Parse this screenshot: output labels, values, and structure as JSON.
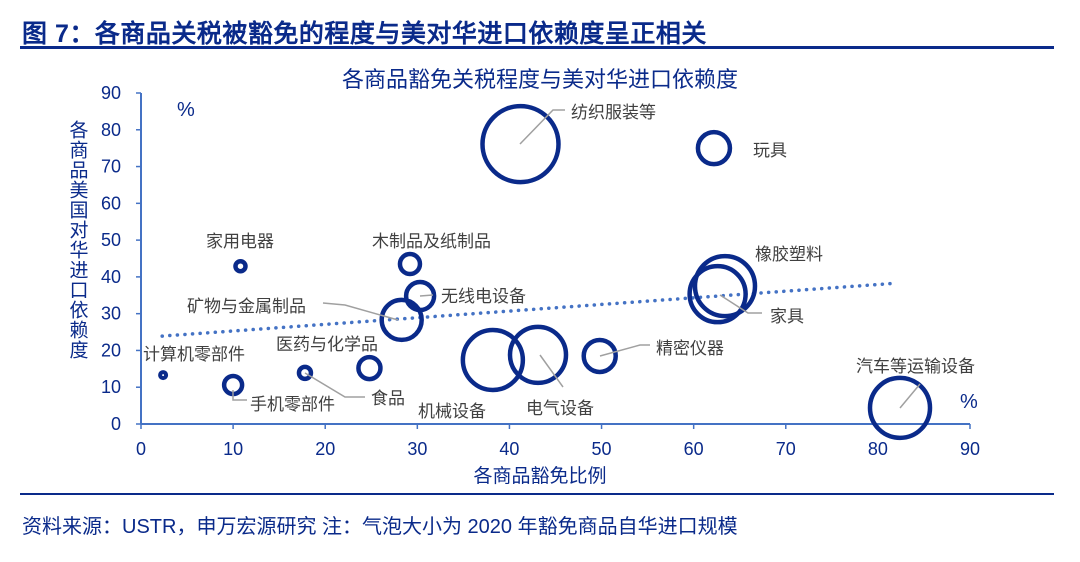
{
  "figure_title": "图 7：各商品关税被豁免的程度与美对华进口依赖度呈正相关",
  "source_note": "资料来源：USTR，申万宏源研究 注：气泡大小为 2020 年豁免商品自华进口规模",
  "chart_data": {
    "type": "scatter",
    "subtype": "bubble",
    "title": "各商品豁免关税程度与美对华进口依赖度",
    "xlabel": "各商品豁免比例",
    "ylabel": "各商品美国对华进口依赖度",
    "x_unit": "%",
    "y_unit": "%",
    "xlim": [
      0,
      90
    ],
    "ylim": [
      0,
      90
    ],
    "xticks": [
      "0",
      "10",
      "20",
      "30",
      "40",
      "50",
      "60",
      "70",
      "80",
      "90"
    ],
    "yticks": [
      "0",
      "10",
      "20",
      "30",
      "40",
      "50",
      "60",
      "70",
      "80",
      "90"
    ],
    "grid": false,
    "bubble_color": "#0a2a8a",
    "trendline": {
      "style": "dotted",
      "color": "#4472c4",
      "x": [
        2.3,
        82.1
      ],
      "y": [
        23.9,
        38.3
      ]
    },
    "points": [
      {
        "name": "计算机零部件",
        "x": 2.4,
        "y": 13.3,
        "size": 9
      },
      {
        "name": "手机零部件",
        "x": 10.0,
        "y": 10.6,
        "size": 81
      },
      {
        "name": "家用电器",
        "x": 10.8,
        "y": 42.9,
        "size": 25
      },
      {
        "name": "医药与化学品",
        "x": 17.8,
        "y": 13.9,
        "size": 36
      },
      {
        "name": "食品",
        "x": 24.8,
        "y": 15.2,
        "size": 121
      },
      {
        "name": "矿物与金属制品",
        "x": 28.3,
        "y": 28.3,
        "size": 400
      },
      {
        "name": "木制品及纸制品",
        "x": 29.2,
        "y": 43.5,
        "size": 100
      },
      {
        "name": "无线电设备",
        "x": 30.3,
        "y": 34.8,
        "size": 196
      },
      {
        "name": "机械设备",
        "x": 38.2,
        "y": 17.4,
        "size": 900
      },
      {
        "name": "电气设备",
        "x": 43.1,
        "y": 18.8,
        "size": 784
      },
      {
        "name": "精密仪器",
        "x": 49.8,
        "y": 18.5,
        "size": 256
      },
      {
        "name": "纺织服装等",
        "x": 41.2,
        "y": 76.1,
        "size": 1444
      },
      {
        "name": "玩具",
        "x": 62.2,
        "y": 75.0,
        "size": 256
      },
      {
        "name": "橡胶塑料",
        "x": 63.4,
        "y": 37.5,
        "size": 900
      },
      {
        "name": "家具",
        "x": 62.6,
        "y": 35.3,
        "size": 784
      },
      {
        "name": "汽车等运输设备",
        "x": 82.4,
        "y": 4.4,
        "size": 900
      }
    ]
  }
}
